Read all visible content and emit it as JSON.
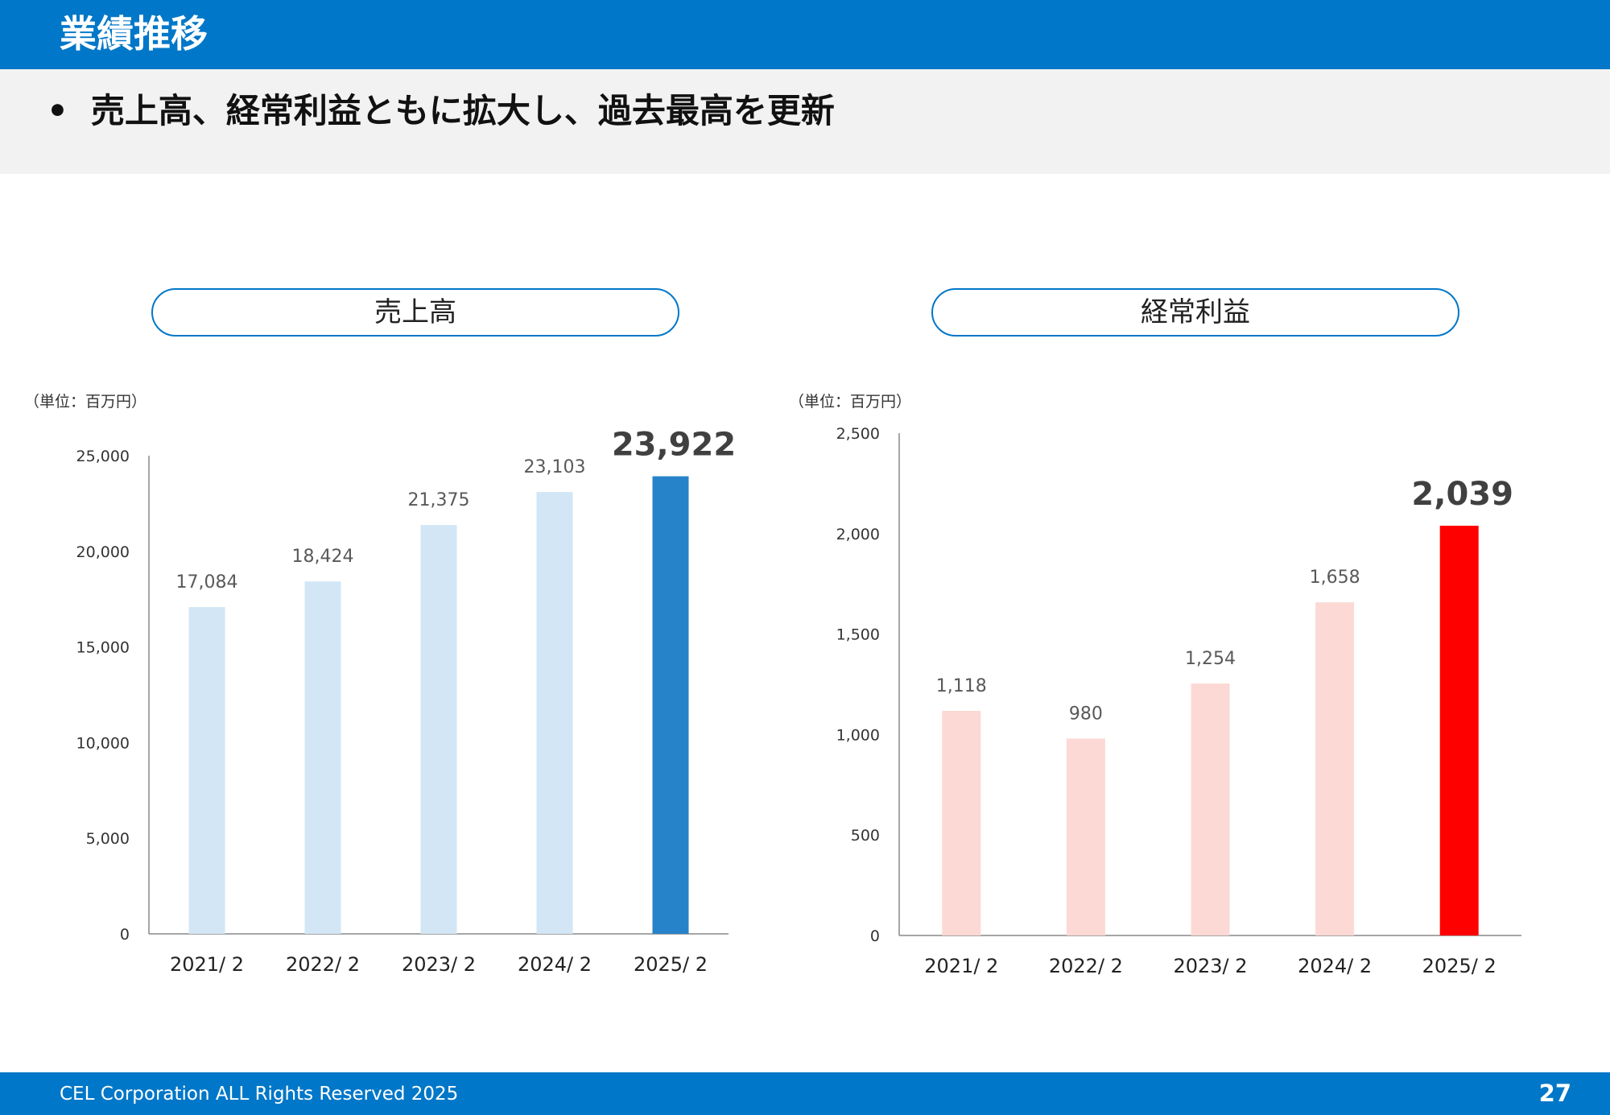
{
  "header": {
    "title": "業績推移"
  },
  "summary": {
    "bullet": "•",
    "text": "売上高、経常利益ともに拡大し、過去最高を更新"
  },
  "footer": {
    "copyright": "CEL Corporation ALL Rights Reserved 2025",
    "page_number": "27"
  },
  "colors": {
    "brand_blue": "#0077c8",
    "revenue_light": "#d2e6f5",
    "revenue_highlight": "#2783c9",
    "profit_light": "#fcd9d4",
    "profit_highlight": "#ff0000"
  },
  "chart_data": [
    {
      "type": "bar",
      "title": "売上高",
      "unit_label": "（単位：百万円）",
      "categories": [
        "2021/ 2",
        "2022/ 2",
        "2023/ 2",
        "2024/ 2",
        "2025/ 2"
      ],
      "values": [
        17084,
        18424,
        21375,
        23103,
        23922
      ],
      "value_labels": [
        "17,084",
        "18,424",
        "21,375",
        "23,103",
        "23,922"
      ],
      "highlight_index": 4,
      "ylim": [
        0,
        25000
      ],
      "yticks": [
        0,
        5000,
        10000,
        15000,
        20000,
        25000
      ],
      "ytick_labels": [
        "0",
        "5,000",
        "10,000",
        "15,000",
        "20,000",
        "25,000"
      ],
      "grid": false
    },
    {
      "type": "bar",
      "title": "経常利益",
      "unit_label": "（単位：百万円）",
      "categories": [
        "2021/ 2",
        "2022/ 2",
        "2023/ 2",
        "2024/ 2",
        "2025/ 2"
      ],
      "values": [
        1118,
        980,
        1254,
        1658,
        2039
      ],
      "value_labels": [
        "1,118",
        "980",
        "1,254",
        "1,658",
        "2,039"
      ],
      "highlight_index": 4,
      "ylim": [
        0,
        2500
      ],
      "yticks": [
        0,
        500,
        1000,
        1500,
        2000,
        2500
      ],
      "ytick_labels": [
        "0",
        "500",
        "1,000",
        "1,500",
        "2,000",
        "2,500"
      ],
      "grid": false
    }
  ]
}
